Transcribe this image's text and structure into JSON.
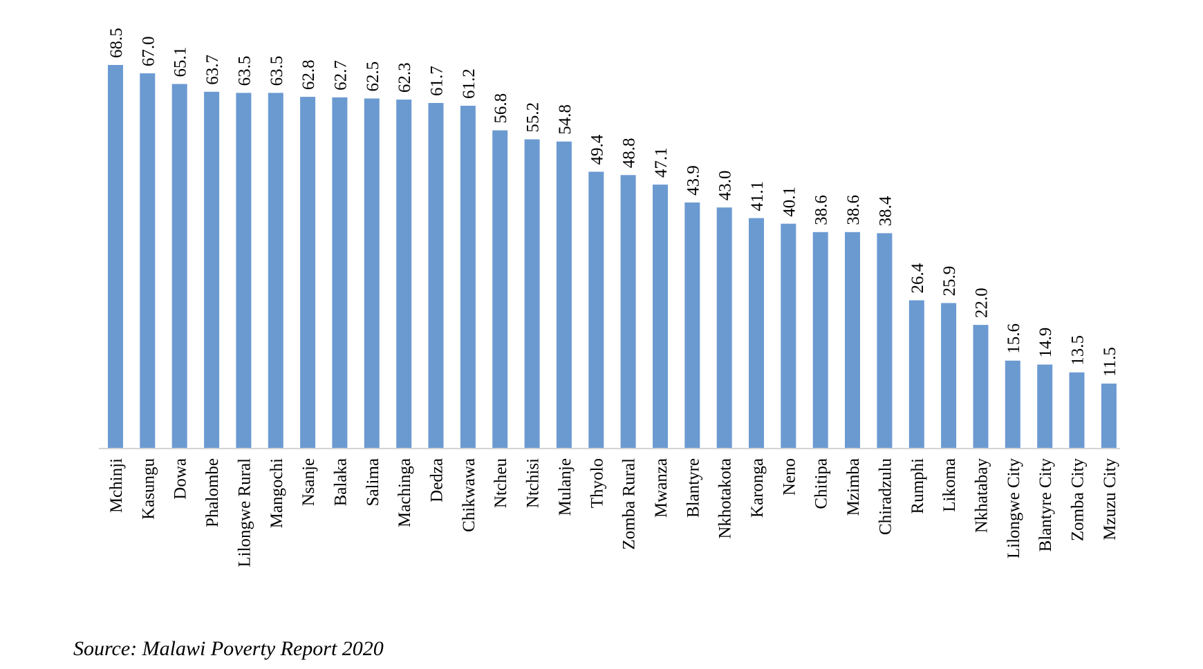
{
  "chart_data": {
    "type": "bar",
    "categories": [
      "Mchinji",
      "Kasungu",
      "Dowa",
      "Phalombe",
      "Lilongwe Rural",
      "Mangochi",
      "Nsanje",
      "Balaka",
      "Salima",
      "Machinga",
      "Dedza",
      "Chikwawa",
      "Ntcheu",
      "Ntchisi",
      "Mulanje",
      "Thyolo",
      "Zomba Rural",
      "Mwanza",
      "Blantyre",
      "Nkhotakota",
      "Karonga",
      "Neno",
      "Chitipa",
      "Mzimba",
      "Chiradzulu",
      "Rumphi",
      "Likoma",
      "Nkhatabay",
      "Lilongwe City",
      "Blantyre City",
      "Zomba City",
      "Mzuzu City"
    ],
    "values": [
      68.5,
      67.0,
      65.1,
      63.7,
      63.5,
      63.5,
      62.8,
      62.7,
      62.5,
      62.3,
      61.7,
      61.2,
      56.8,
      55.2,
      54.8,
      49.4,
      48.8,
      47.1,
      43.9,
      43.0,
      41.1,
      40.1,
      38.6,
      38.6,
      38.4,
      26.4,
      25.9,
      22.0,
      15.6,
      14.9,
      13.5,
      11.5
    ],
    "data_labels": [
      "68.5",
      "67.0",
      "65.1",
      "63.7",
      "63.5",
      "63.5",
      "62.8",
      "62.7",
      "62.5",
      "62.3",
      "61.7",
      "61.2",
      "56.8",
      "55.2",
      "54.8",
      "49.4",
      "48.8",
      "47.1",
      "43.9",
      "43.0",
      "41.1",
      "40.1",
      "38.6",
      "38.6",
      "38.4",
      "26.4",
      "25.9",
      "22.0",
      "15.6",
      "14.9",
      "13.5",
      "11.5"
    ],
    "title": "",
    "xlabel": "",
    "ylabel": "",
    "ylim": [
      0,
      68.5
    ],
    "grid": false,
    "legend": "none",
    "colors": {
      "bar": "#6b9ad1",
      "axis": "#d4d4d4",
      "text": "#000000"
    }
  },
  "source": "Source: Malawi Poverty Report 2020"
}
